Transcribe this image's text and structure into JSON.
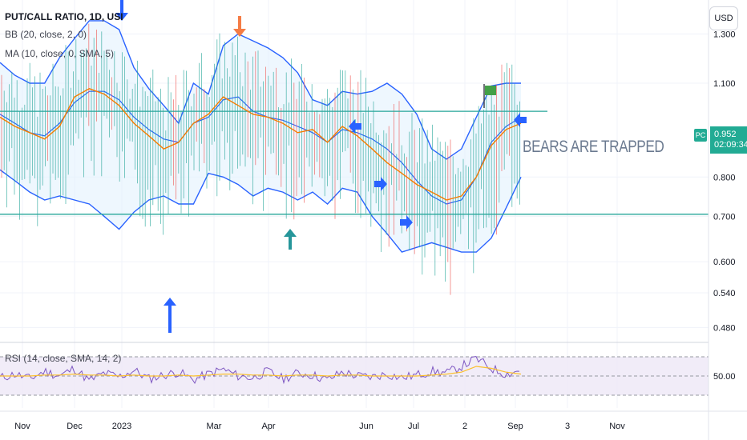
{
  "legend": {
    "title": "PUT/CALL RATIO, 1D, USI",
    "bb": "BB (20, close, 2, 0)",
    "ma": "MA (10, close, 0, SMA, 5)",
    "rsi": "RSI (14, close, SMA, 14, 2)"
  },
  "currency_button": "USD",
  "annotation": "BEARS ARE TRAPPED",
  "price_tag": {
    "label": "PC",
    "value": "0.952",
    "countdown": "02:09:34"
  },
  "colors": {
    "bands": "#2962ff",
    "band_fill": "#e3f2fd",
    "ma": "#f57c00",
    "candle_up": "#26a69a",
    "candle_down": "#ef5350",
    "hline": "#26a69a",
    "rsi_line": "#7e57c2",
    "rsi_ma": "#fbc02d",
    "rsi_bg": "#ede7f6",
    "arrow_blue": "#2962ff",
    "arrow_orange": "#f57c45",
    "arrow_teal": "#26969a",
    "flag": "#43a047"
  },
  "chart_data": [
    {
      "type": "candlestick",
      "title": "PUT/CALL RATIO, 1D, USI",
      "scale": "log",
      "ylim": [
        0.46,
        1.42
      ],
      "y_ticks": [
        "1.300",
        "1.100",
        "0.800",
        "0.700",
        "0.600",
        "0.540",
        "0.480"
      ],
      "x_ticks": [
        "Nov",
        "Dec",
        "2023",
        "Mar",
        "Apr",
        "Jun",
        "Jul",
        "2",
        "Sep",
        "3",
        "Nov"
      ],
      "horizontal_lines": [
        1.0,
        0.705
      ],
      "series": [
        {
          "name": "BB (20, close, 2, 0)",
          "kind": "bands",
          "upper": [
            1.18,
            1.13,
            1.1,
            1.1,
            1.2,
            1.28,
            1.36,
            1.36,
            1.32,
            1.16,
            1.08,
            1.02,
            0.96,
            1.1,
            1.06,
            1.25,
            1.3,
            1.27,
            1.24,
            1.2,
            1.14,
            1.04,
            1.02,
            1.07,
            1.06,
            1.07,
            1.1,
            1.06,
            0.99,
            0.88,
            0.85,
            0.88,
            0.98,
            1.09,
            1.1,
            1.1
          ],
          "mid": [
            0.99,
            0.96,
            0.93,
            0.92,
            0.96,
            1.03,
            1.07,
            1.07,
            1.04,
            0.98,
            0.94,
            0.91,
            0.9,
            0.96,
            0.98,
            1.04,
            1.05,
            1.0,
            0.98,
            0.97,
            0.95,
            0.93,
            0.9,
            0.94,
            0.93,
            0.91,
            0.88,
            0.84,
            0.79,
            0.75,
            0.73,
            0.74,
            0.8,
            0.9,
            0.95,
            0.98
          ],
          "lower": [
            0.82,
            0.79,
            0.76,
            0.74,
            0.75,
            0.74,
            0.73,
            0.7,
            0.67,
            0.71,
            0.74,
            0.75,
            0.73,
            0.73,
            0.81,
            0.8,
            0.78,
            0.75,
            0.77,
            0.76,
            0.74,
            0.76,
            0.73,
            0.77,
            0.76,
            0.7,
            0.66,
            0.62,
            0.63,
            0.64,
            0.63,
            0.62,
            0.62,
            0.65,
            0.72,
            0.8
          ]
        },
        {
          "name": "MA (10, close, 0, SMA, 5)",
          "kind": "line",
          "values": [
            0.98,
            0.95,
            0.93,
            0.91,
            0.95,
            1.05,
            1.08,
            1.06,
            1.02,
            0.96,
            0.92,
            0.88,
            0.9,
            0.96,
            0.99,
            1.05,
            1.02,
            0.99,
            0.98,
            0.96,
            0.93,
            0.94,
            0.9,
            0.95,
            0.92,
            0.88,
            0.84,
            0.81,
            0.78,
            0.76,
            0.74,
            0.75,
            0.8,
            0.89,
            0.94,
            0.96
          ]
        }
      ]
    },
    {
      "type": "line",
      "title": "RSI (14, close, SMA, 14, 2)",
      "ylim": [
        20,
        80
      ],
      "y_ticks": [
        "50.00"
      ],
      "band": [
        30,
        70
      ],
      "series": [
        {
          "name": "RSI",
          "values": [
            48,
            52,
            47,
            55,
            50,
            58,
            45,
            53,
            49,
            56,
            47,
            51,
            54,
            46,
            52,
            57,
            50,
            48,
            55,
            47,
            53,
            51,
            46,
            54,
            50,
            49,
            52,
            48,
            51,
            55,
            53,
            60,
            68,
            58,
            52,
            56
          ]
        },
        {
          "name": "RSI MA",
          "values": [
            50,
            50,
            50,
            51,
            51,
            52,
            51,
            51,
            50,
            51,
            50,
            50,
            51,
            50,
            51,
            52,
            52,
            51,
            51,
            50,
            51,
            51,
            50,
            51,
            51,
            50,
            50,
            50,
            50,
            51,
            52,
            54,
            60,
            58,
            54,
            52
          ]
        }
      ]
    }
  ]
}
